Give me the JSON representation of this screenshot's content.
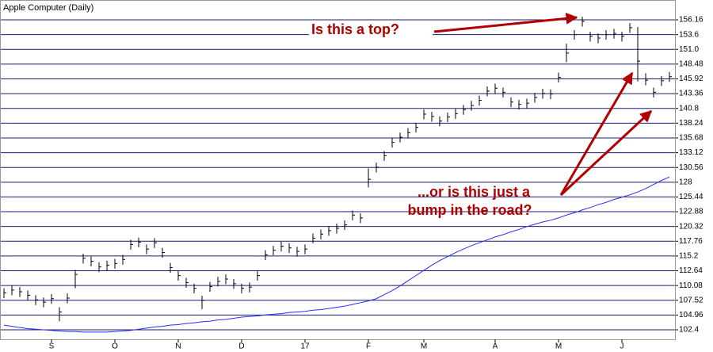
{
  "chart_data": {
    "type": "ohlc",
    "title": "Apple Computer (Daily)",
    "categories": [
      null,
      null,
      null,
      null,
      null,
      null,
      "S",
      null,
      null,
      null,
      null,
      null,
      null,
      null,
      "O",
      null,
      null,
      null,
      null,
      null,
      null,
      null,
      "N",
      null,
      null,
      null,
      null,
      null,
      null,
      null,
      "D",
      null,
      null,
      null,
      null,
      null,
      null,
      null,
      "17",
      null,
      null,
      null,
      null,
      null,
      null,
      null,
      "F",
      null,
      null,
      null,
      null,
      null,
      null,
      "M",
      null,
      null,
      null,
      null,
      null,
      null,
      null,
      null,
      "A",
      null,
      null,
      null,
      null,
      null,
      null,
      null,
      "M",
      null,
      null,
      null,
      null,
      null,
      null,
      null,
      "J",
      null,
      null,
      null,
      null,
      null,
      null
    ],
    "high": [
      109.6,
      110.1,
      109.8,
      109.2,
      108.4,
      108.0,
      108.6,
      106.3,
      108.7,
      112.8,
      115.6,
      115.1,
      114.1,
      114.4,
      114.7,
      115.4,
      118.0,
      118.4,
      117.2,
      118.3,
      116.6,
      114.0,
      112.6,
      111.4,
      110.4,
      108.3,
      110.7,
      111.6,
      112.0,
      111.2,
      110.4,
      110.6,
      112.6,
      116.2,
      117.0,
      117.7,
      117.4,
      116.8,
      117.2,
      119.1,
      119.8,
      120.4,
      120.8,
      121.4,
      123.1,
      122.6,
      130.4,
      131.4,
      133.4,
      135.7,
      136.6,
      137.4,
      138.3,
      140.6,
      140.2,
      139.4,
      140.1,
      140.7,
      141.4,
      142.1,
      143.0,
      144.6,
      145.1,
      144.4,
      142.7,
      142.3,
      142.5,
      143.5,
      144.2,
      144.1,
      147.0,
      152.0,
      154.4,
      156.7,
      154.1,
      153.8,
      154.4,
      154.6,
      154.1,
      155.6,
      154.9,
      146.9,
      144.4,
      146.4,
      147.1
    ],
    "low": [
      107.9,
      108.4,
      108.1,
      107.5,
      106.7,
      106.3,
      106.9,
      103.9,
      107.0,
      109.6,
      113.9,
      113.4,
      112.4,
      112.7,
      113.0,
      113.7,
      116.3,
      116.7,
      115.5,
      116.6,
      114.9,
      112.3,
      110.9,
      109.7,
      108.7,
      106.0,
      109.0,
      109.9,
      110.3,
      109.5,
      108.7,
      108.9,
      110.9,
      114.5,
      115.3,
      116.0,
      115.7,
      115.1,
      115.5,
      117.4,
      118.1,
      118.7,
      119.1,
      119.7,
      121.4,
      120.9,
      127.1,
      129.7,
      131.7,
      134.0,
      134.9,
      135.7,
      136.6,
      138.9,
      138.5,
      137.7,
      138.4,
      139.0,
      139.7,
      140.4,
      141.3,
      142.9,
      143.4,
      142.7,
      141.0,
      140.6,
      140.8,
      141.8,
      142.5,
      142.4,
      145.3,
      148.8,
      152.7,
      155.0,
      152.4,
      152.1,
      152.7,
      152.9,
      152.4,
      153.9,
      145.5,
      144.8,
      142.7,
      144.7,
      145.4
    ],
    "close": [
      108.8,
      109.3,
      109.0,
      108.4,
      107.6,
      107.2,
      107.8,
      105.5,
      107.9,
      112.0,
      114.8,
      114.3,
      113.3,
      113.6,
      113.9,
      114.6,
      117.2,
      117.6,
      116.4,
      117.5,
      115.8,
      113.2,
      111.8,
      110.6,
      109.6,
      107.5,
      109.9,
      110.8,
      111.2,
      110.4,
      109.6,
      109.8,
      111.8,
      115.4,
      116.2,
      116.9,
      116.6,
      116.0,
      116.4,
      118.3,
      119.0,
      119.6,
      120.0,
      120.6,
      122.3,
      121.8,
      128.5,
      130.6,
      132.6,
      134.9,
      135.8,
      136.6,
      137.5,
      139.8,
      139.4,
      138.6,
      139.3,
      139.9,
      140.6,
      141.3,
      142.2,
      143.8,
      144.3,
      143.6,
      141.9,
      141.5,
      141.7,
      142.7,
      143.4,
      143.3,
      146.2,
      150.4,
      153.6,
      155.9,
      153.3,
      153.0,
      153.6,
      153.8,
      153.3,
      154.8,
      149.0,
      145.7,
      143.6,
      145.6,
      146.3
    ],
    "moving_average": [
      103.2,
      103.0,
      102.8,
      102.6,
      102.5,
      102.4,
      102.3,
      102.2,
      102.1,
      102.1,
      102.0,
      102.0,
      102.0,
      102.0,
      102.1,
      102.2,
      102.3,
      102.5,
      102.7,
      102.9,
      103.0,
      103.2,
      103.3,
      103.5,
      103.6,
      103.8,
      103.9,
      104.1,
      104.2,
      104.4,
      104.6,
      104.7,
      104.8,
      105.0,
      105.1,
      105.2,
      105.4,
      105.5,
      105.6,
      105.8,
      105.9,
      106.1,
      106.3,
      106.5,
      106.8,
      107.1,
      107.4,
      107.8,
      108.5,
      109.2,
      110.0,
      110.9,
      111.8,
      112.7,
      113.6,
      114.4,
      115.1,
      115.8,
      116.4,
      117.0,
      117.5,
      118.0,
      118.5,
      118.9,
      119.4,
      119.8,
      120.3,
      120.7,
      121.1,
      121.4,
      121.8,
      122.3,
      122.7,
      123.2,
      123.6,
      124.1,
      124.5,
      125.0,
      125.4,
      125.8,
      126.3,
      126.9,
      127.6,
      128.3,
      128.9
    ],
    "bar_color": "#000000",
    "ma_color": "#2a2aff",
    "grid_color": "#1c1c70",
    "ylim": [
      100.75,
      159.05
    ],
    "yticks": [
      102.4,
      104.96,
      107.52,
      110.08,
      112.64,
      115.2,
      117.76,
      120.32,
      122.88,
      125.44,
      128,
      130.56,
      133.12,
      135.68,
      138.24,
      140.8,
      143.36,
      145.92,
      148.48,
      {
        "value": 151.04,
        "label": "151.0"
      },
      153.6,
      156.16
    ],
    "grid": true,
    "annotations": [
      "Is this a top?",
      "...or is this just a",
      "bump in the road?"
    ]
  }
}
